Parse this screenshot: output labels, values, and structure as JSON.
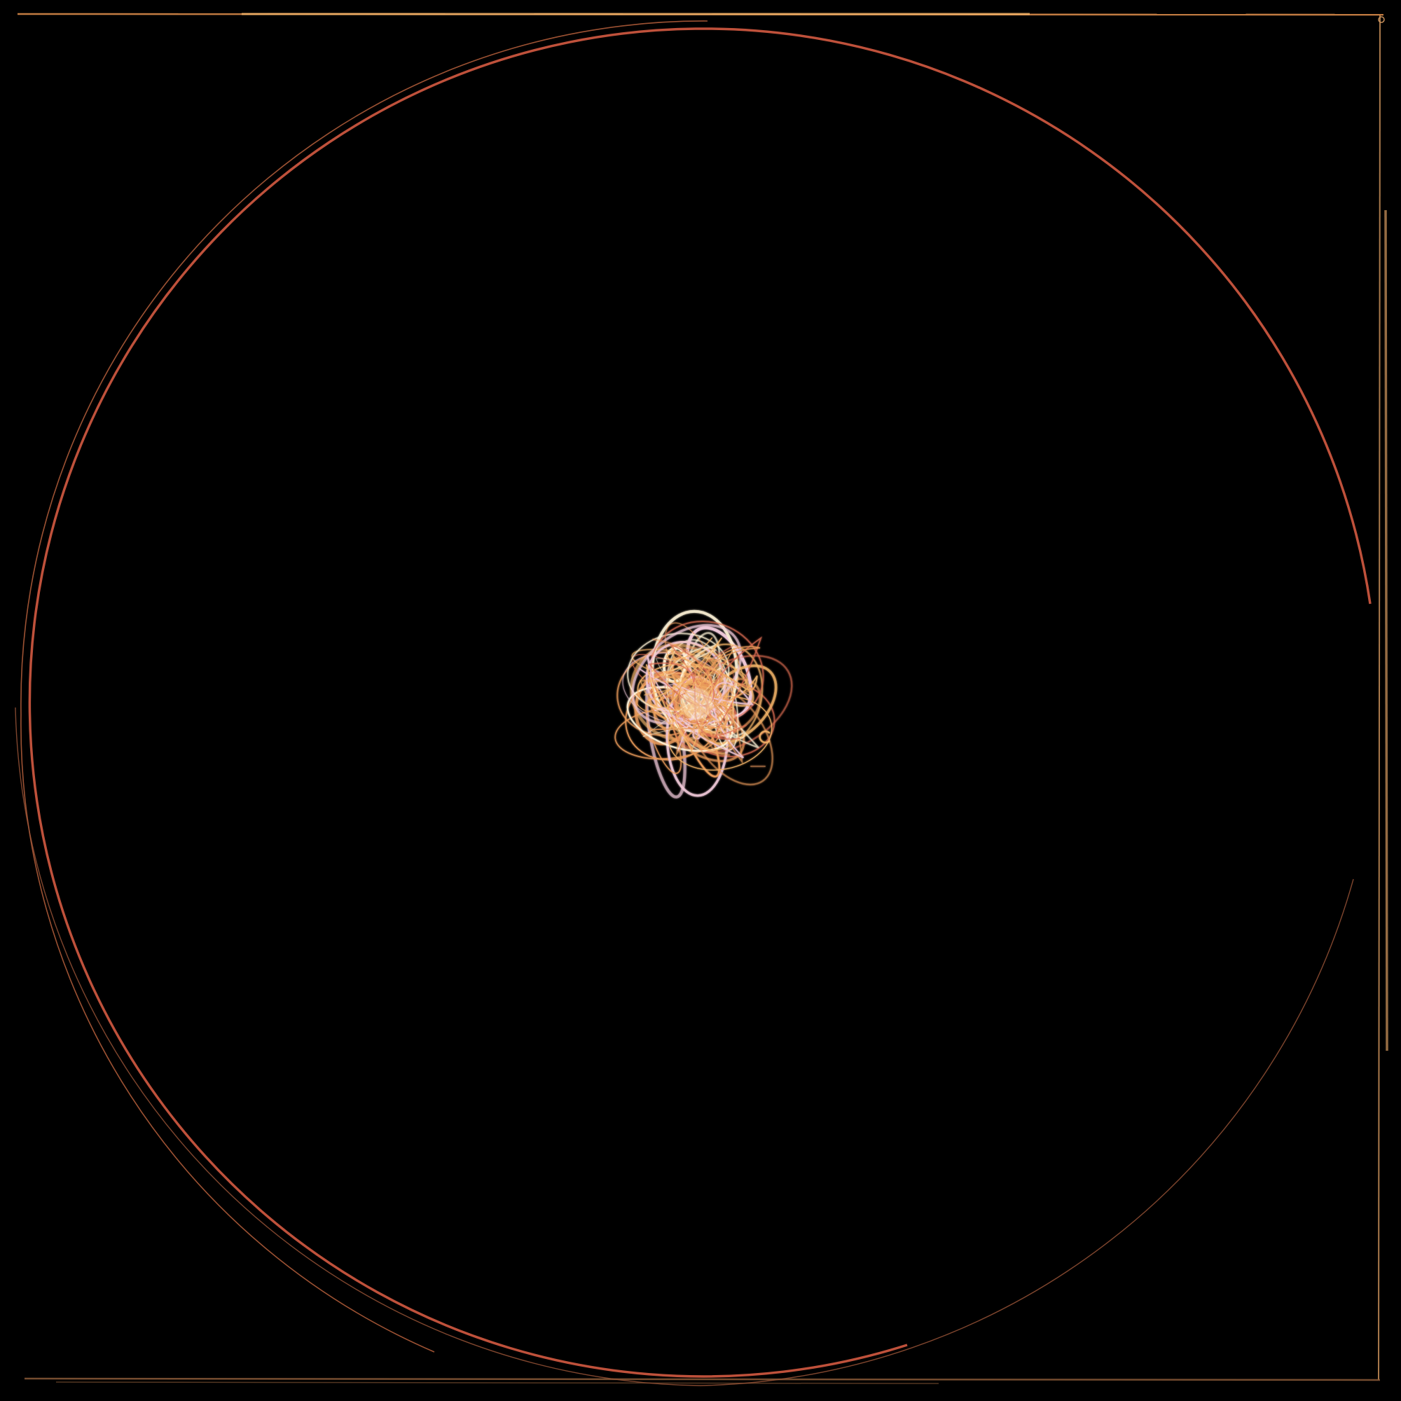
{
  "background": "#000000",
  "colors": {
    "frame_warm": "#d98a4a",
    "frame_right": "#c8905a",
    "frame_bottom": "#8a5a38",
    "ring_main": "#c9553e",
    "ring_faint": "#b8603c",
    "ring_outer_right": "#a0583a",
    "tangle_core": "#fff4d8",
    "tangle_mid": "#f6b66a",
    "tangle_warm": "#e89a5a",
    "tangle_pink": "#f0c8d8",
    "tangle_red": "#d86a50"
  }
}
